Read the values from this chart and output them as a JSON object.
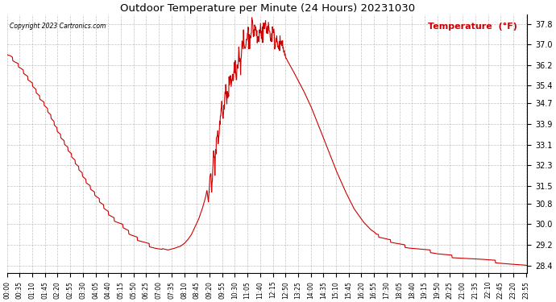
{
  "title": "Outdoor Temperature per Minute (24 Hours) 20231030",
  "copyright_text": "Copyright 2023 Cartronics.com",
  "legend_text": "Temperature  (°F)",
  "line_color": "#cc0000",
  "legend_color": "#cc0000",
  "copyright_color": "#000000",
  "background_color": "#ffffff",
  "grid_color": "#999999",
  "ylim_min": 28.1,
  "ylim_max": 38.15,
  "yticks": [
    28.4,
    29.2,
    30.0,
    30.8,
    31.5,
    32.3,
    33.1,
    33.9,
    34.7,
    35.4,
    36.2,
    37.0,
    37.8
  ],
  "total_minutes": 1440,
  "x_tick_interval": 35,
  "waypoints": [
    [
      0,
      36.7
    ],
    [
      10,
      36.6
    ],
    [
      20,
      36.4
    ],
    [
      35,
      36.2
    ],
    [
      50,
      35.9
    ],
    [
      70,
      35.5
    ],
    [
      90,
      35.0
    ],
    [
      105,
      34.7
    ],
    [
      120,
      34.3
    ],
    [
      140,
      33.7
    ],
    [
      160,
      33.2
    ],
    [
      180,
      32.7
    ],
    [
      200,
      32.2
    ],
    [
      220,
      31.7
    ],
    [
      240,
      31.3
    ],
    [
      260,
      30.9
    ],
    [
      280,
      30.5
    ],
    [
      300,
      30.2
    ],
    [
      320,
      30.0
    ],
    [
      340,
      29.7
    ],
    [
      360,
      29.5
    ],
    [
      380,
      29.35
    ],
    [
      400,
      29.2
    ],
    [
      415,
      29.1
    ],
    [
      430,
      29.05
    ],
    [
      445,
      29.0
    ],
    [
      460,
      29.05
    ],
    [
      470,
      29.1
    ],
    [
      480,
      29.15
    ],
    [
      490,
      29.25
    ],
    [
      500,
      29.4
    ],
    [
      510,
      29.6
    ],
    [
      520,
      29.9
    ],
    [
      530,
      30.2
    ],
    [
      540,
      30.6
    ],
    [
      548,
      31.0
    ],
    [
      553,
      31.3
    ],
    [
      557,
      30.9
    ],
    [
      560,
      31.5
    ],
    [
      563,
      32.0
    ],
    [
      566,
      31.5
    ],
    [
      569,
      32.2
    ],
    [
      572,
      32.8
    ],
    [
      575,
      32.3
    ],
    [
      578,
      33.0
    ],
    [
      581,
      33.5
    ],
    [
      584,
      33.1
    ],
    [
      587,
      33.7
    ],
    [
      590,
      34.2
    ],
    [
      594,
      34.6
    ],
    [
      598,
      34.2
    ],
    [
      602,
      34.8
    ],
    [
      606,
      35.2
    ],
    [
      610,
      34.8
    ],
    [
      614,
      35.3
    ],
    [
      618,
      35.7
    ],
    [
      622,
      35.3
    ],
    [
      626,
      35.8
    ],
    [
      630,
      36.2
    ],
    [
      634,
      35.8
    ],
    [
      638,
      36.3
    ],
    [
      642,
      36.7
    ],
    [
      646,
      36.3
    ],
    [
      650,
      36.8
    ],
    [
      654,
      37.1
    ],
    [
      658,
      36.8
    ],
    [
      662,
      37.2
    ],
    [
      666,
      37.5
    ],
    [
      670,
      37.1
    ],
    [
      674,
      37.5
    ],
    [
      678,
      37.8
    ],
    [
      682,
      37.4
    ],
    [
      686,
      37.7
    ],
    [
      690,
      37.4
    ],
    [
      694,
      37.1
    ],
    [
      698,
      37.4
    ],
    [
      702,
      37.7
    ],
    [
      706,
      37.3
    ],
    [
      710,
      37.6
    ],
    [
      714,
      37.8
    ],
    [
      718,
      37.5
    ],
    [
      722,
      37.8
    ],
    [
      726,
      37.5
    ],
    [
      730,
      37.2
    ],
    [
      734,
      37.5
    ],
    [
      738,
      37.3
    ],
    [
      742,
      37.0
    ],
    [
      746,
      37.3
    ],
    [
      750,
      37.1
    ],
    [
      754,
      36.9
    ],
    [
      758,
      37.1
    ],
    [
      762,
      36.9
    ],
    [
      766,
      36.7
    ],
    [
      770,
      36.5
    ],
    [
      778,
      36.3
    ],
    [
      790,
      36.0
    ],
    [
      805,
      35.6
    ],
    [
      820,
      35.2
    ],
    [
      840,
      34.6
    ],
    [
      860,
      33.9
    ],
    [
      885,
      33.0
    ],
    [
      910,
      32.1
    ],
    [
      935,
      31.3
    ],
    [
      960,
      30.6
    ],
    [
      985,
      30.1
    ],
    [
      1005,
      29.8
    ],
    [
      1020,
      29.65
    ],
    [
      1035,
      29.55
    ],
    [
      1050,
      29.45
    ],
    [
      1070,
      29.35
    ],
    [
      1090,
      29.25
    ],
    [
      1110,
      29.15
    ],
    [
      1130,
      29.1
    ],
    [
      1150,
      29.05
    ],
    [
      1170,
      29.0
    ],
    [
      1190,
      28.9
    ],
    [
      1210,
      28.85
    ],
    [
      1230,
      28.8
    ],
    [
      1260,
      28.75
    ],
    [
      1300,
      28.7
    ],
    [
      1350,
      28.6
    ],
    [
      1390,
      28.5
    ],
    [
      1420,
      28.45
    ],
    [
      1439,
      28.4
    ]
  ]
}
